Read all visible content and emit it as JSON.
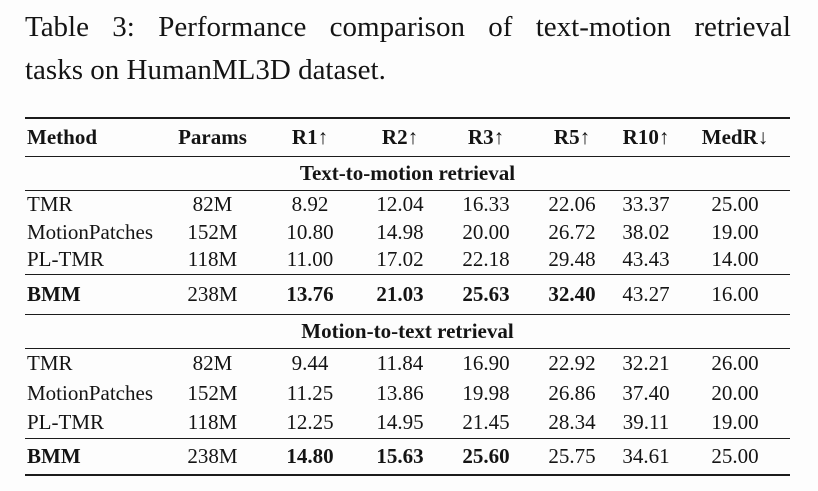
{
  "caption": {
    "line1": "Table 3: Performance comparison of text-motion retrieval",
    "line2": "tasks on HumanML3D dataset."
  },
  "table": {
    "columns": [
      "Method",
      "Params",
      "R1↑",
      "R2↑",
      "R3↑",
      "R5↑",
      "R10↑",
      "MedR↓"
    ],
    "sections": [
      {
        "title": "Text-to-motion retrieval",
        "rows": [
          {
            "method": "TMR",
            "params": "82M",
            "values": [
              "8.92",
              "12.04",
              "16.33",
              "22.06",
              "33.37",
              "25.00"
            ]
          },
          {
            "method": "MotionPatches",
            "params": "152M",
            "values": [
              "10.80",
              "14.98",
              "20.00",
              "26.72",
              "38.02",
              "19.00"
            ]
          },
          {
            "method": "PL-TMR",
            "params": "118M",
            "values": [
              "11.00",
              "17.02",
              "22.18",
              "29.48",
              "43.43",
              "14.00"
            ]
          }
        ],
        "best": {
          "method": "BMM",
          "params": "238M",
          "values": [
            "13.76",
            "21.03",
            "25.63",
            "32.40",
            "43.27",
            "16.00"
          ]
        }
      },
      {
        "title": "Motion-to-text retrieval",
        "rows": [
          {
            "method": "TMR",
            "params": "82M",
            "values": [
              "9.44",
              "11.84",
              "16.90",
              "22.92",
              "32.21",
              "26.00"
            ]
          },
          {
            "method": "MotionPatches",
            "params": "152M",
            "values": [
              "11.25",
              "13.86",
              "19.98",
              "26.86",
              "37.40",
              "20.00"
            ]
          },
          {
            "method": "PL-TMR",
            "params": "118M",
            "values": [
              "12.25",
              "14.95",
              "21.45",
              "28.34",
              "39.11",
              "19.00"
            ]
          }
        ],
        "best": {
          "method": "BMM",
          "params": "238M",
          "values": [
            "14.80",
            "15.63",
            "25.60",
            "25.75",
            "34.61",
            "25.00"
          ]
        }
      }
    ]
  },
  "colors": {
    "text": "#141414",
    "rule": "#1c1c1c",
    "background": "#fdfdfd"
  }
}
